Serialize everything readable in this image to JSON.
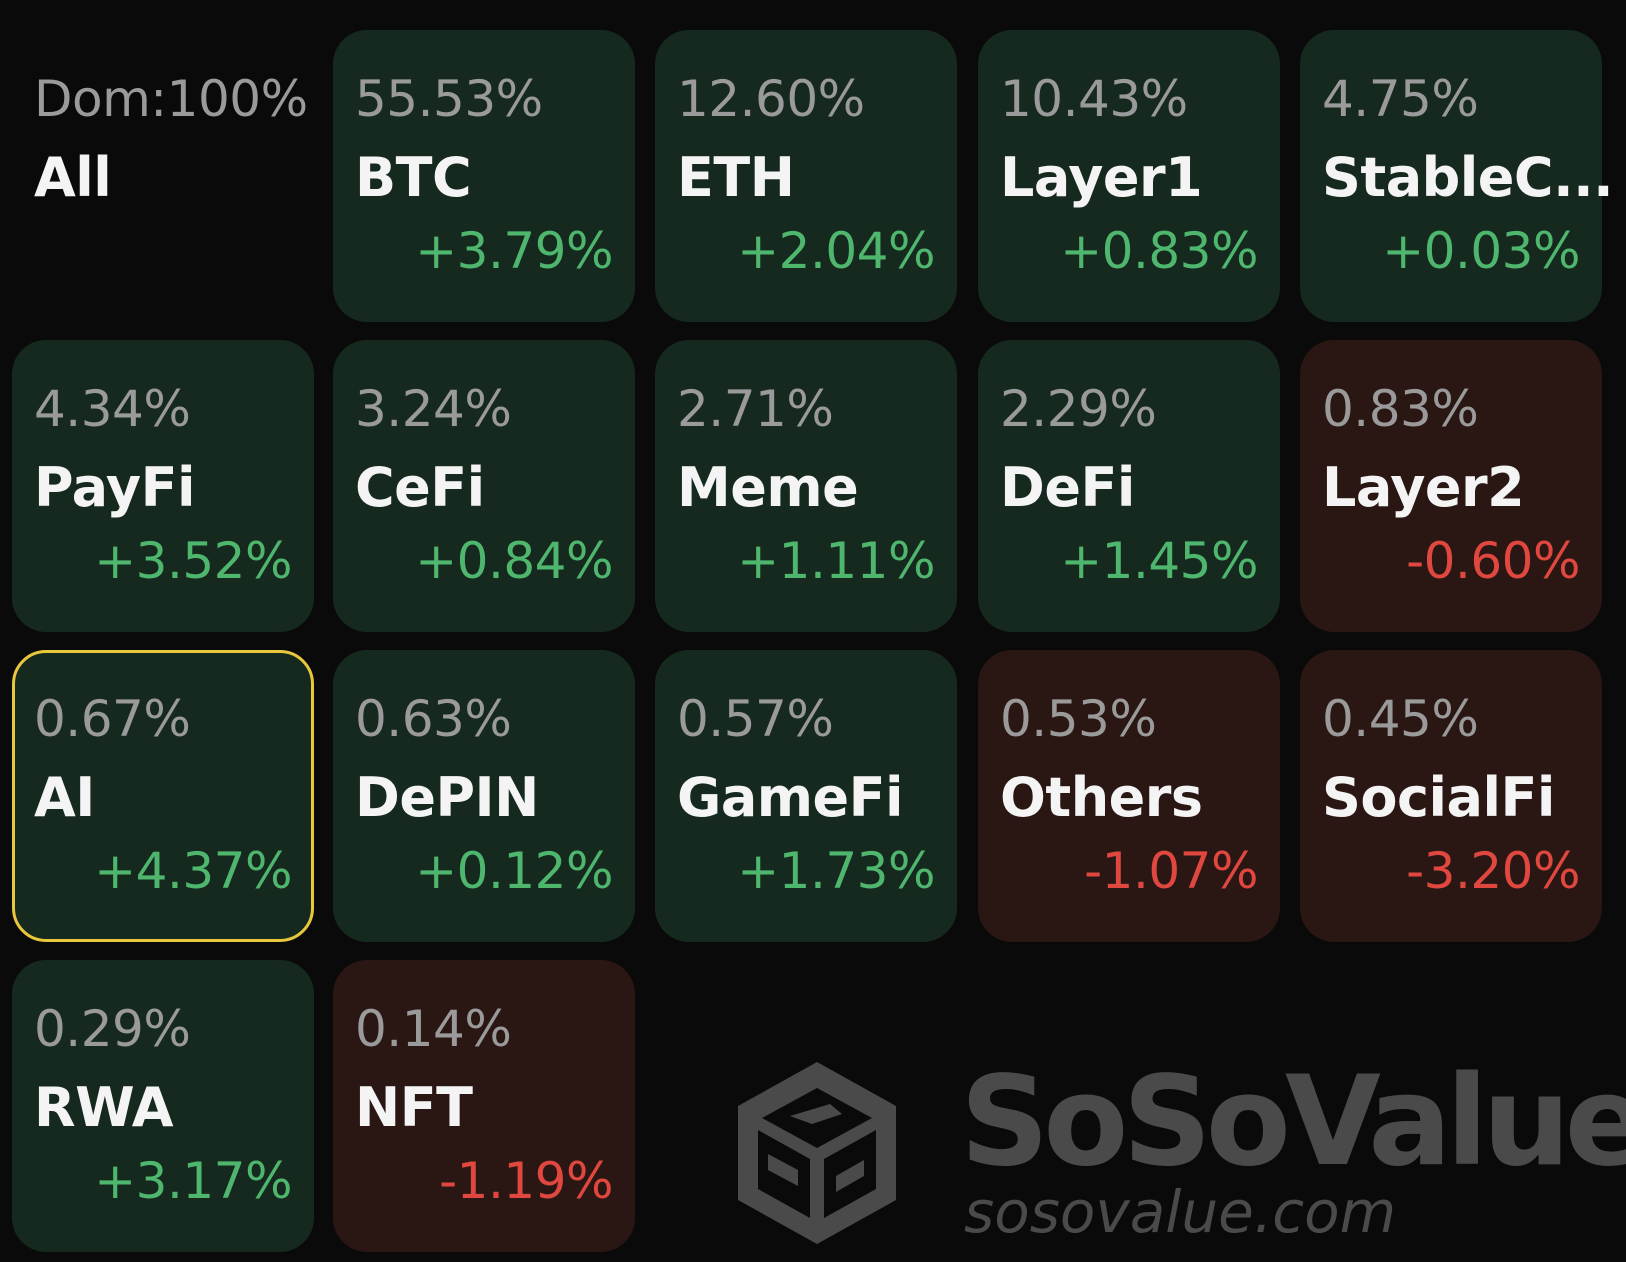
{
  "tiles": [
    {
      "dominance": "Dom:100%",
      "name": "All",
      "change": "",
      "trend": "flat"
    },
    {
      "dominance": "55.53%",
      "name": "BTC",
      "change": "+3.79%",
      "trend": "up"
    },
    {
      "dominance": "12.60%",
      "name": "ETH",
      "change": "+2.04%",
      "trend": "up"
    },
    {
      "dominance": "10.43%",
      "name": "Layer1",
      "change": "+0.83%",
      "trend": "up"
    },
    {
      "dominance": "4.75%",
      "name": "StableC...",
      "change": "+0.03%",
      "trend": "up"
    },
    {
      "dominance": "4.34%",
      "name": "PayFi",
      "change": "+3.52%",
      "trend": "up"
    },
    {
      "dominance": "3.24%",
      "name": "CeFi",
      "change": "+0.84%",
      "trend": "up"
    },
    {
      "dominance": "2.71%",
      "name": "Meme",
      "change": "+1.11%",
      "trend": "up"
    },
    {
      "dominance": "2.29%",
      "name": "DeFi",
      "change": "+1.45%",
      "trend": "up"
    },
    {
      "dominance": "0.83%",
      "name": "Layer2",
      "change": "-0.60%",
      "trend": "down"
    },
    {
      "dominance": "0.67%",
      "name": "AI",
      "change": "+4.37%",
      "trend": "up",
      "selected": true
    },
    {
      "dominance": "0.63%",
      "name": "DePIN",
      "change": "+0.12%",
      "trend": "up"
    },
    {
      "dominance": "0.57%",
      "name": "GameFi",
      "change": "+1.73%",
      "trend": "up"
    },
    {
      "dominance": "0.53%",
      "name": "Others",
      "change": "-1.07%",
      "trend": "down"
    },
    {
      "dominance": "0.45%",
      "name": "SocialFi",
      "change": "-3.20%",
      "trend": "down"
    },
    {
      "dominance": "0.29%",
      "name": "RWA",
      "change": "+3.17%",
      "trend": "up"
    },
    {
      "dominance": "0.14%",
      "name": "NFT",
      "change": "-1.19%",
      "trend": "down"
    }
  ],
  "watermark": {
    "brand": "SoSoValue",
    "url": "sosovalue.com",
    "logo_icon": "sosovalue-cube-logo-icon"
  },
  "colors": {
    "background": "#0a0a0a",
    "tile_up": "#16291f",
    "tile_down": "#2a1714",
    "change_up": "#4fb66e",
    "change_down": "#e0473f",
    "selected_border": "#e9c73a",
    "dominance_text": "#9a9a9a",
    "name_text": "#f4f4f4",
    "watermark": "#4a4a4a"
  }
}
